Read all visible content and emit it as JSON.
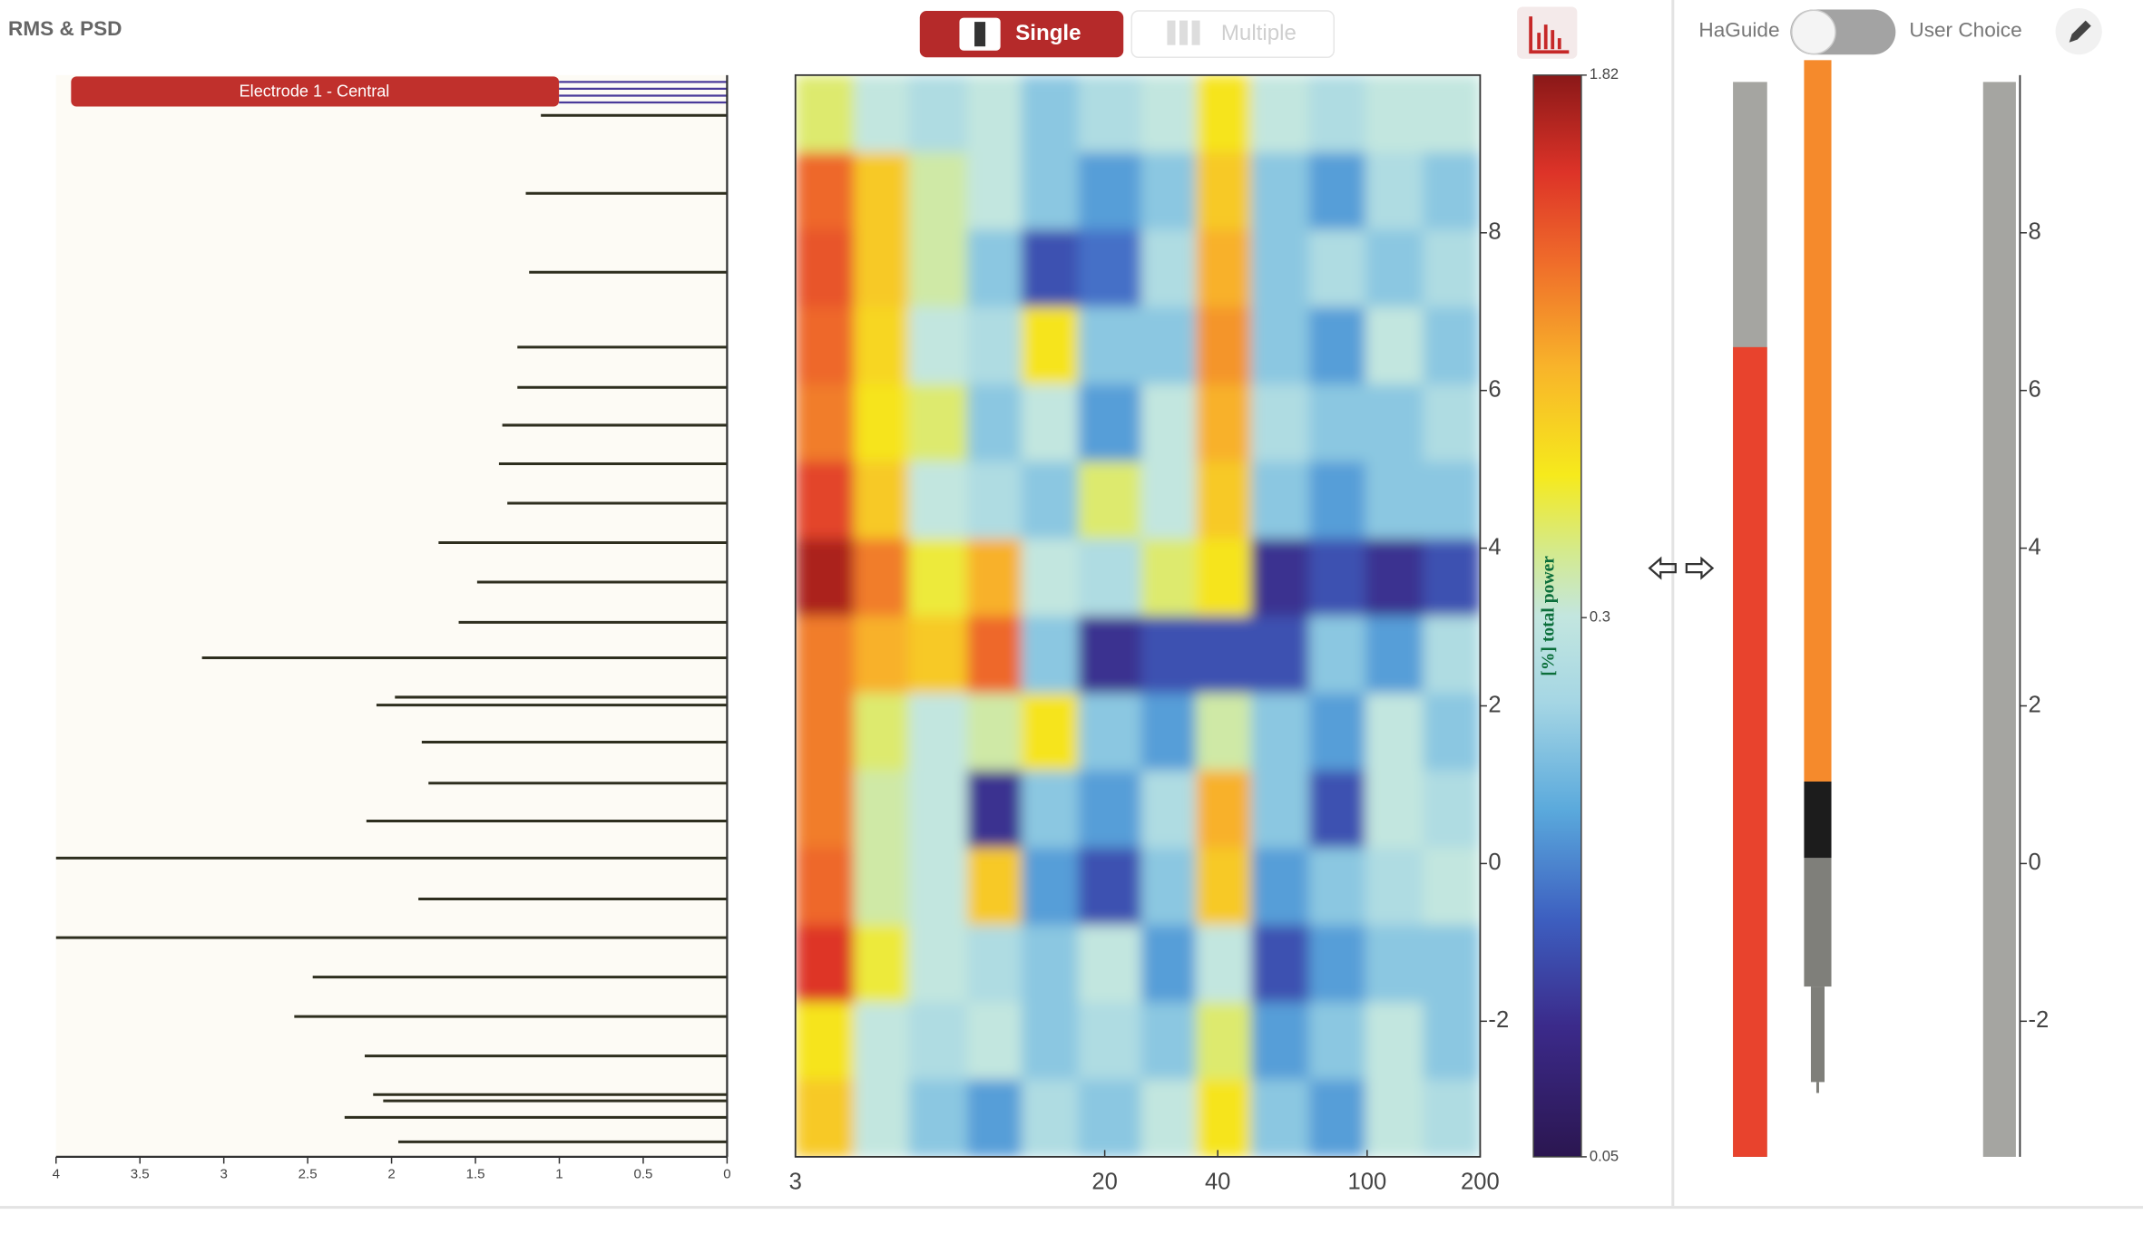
{
  "header": {
    "title": "RMS & PSD",
    "single": "Single",
    "multiple": "Multiple"
  },
  "toggle": {
    "left": "HaGuide",
    "right": "User Choice"
  },
  "chart_data": [
    {
      "type": "hbar",
      "label": "Electrode 1 - Central",
      "color": "#2e2e1e",
      "y": [
        9.49,
        8.5,
        7.5,
        6.55,
        6.04,
        5.56,
        5.07,
        4.57,
        4.07,
        3.57,
        3.06,
        2.61,
        2.11,
        2.01,
        1.54,
        1.02,
        0.54,
        0.07,
        -0.45,
        -0.94,
        -1.44,
        -1.94,
        -2.44,
        -2.93,
        -3.01,
        -3.22,
        -3.53
      ],
      "values": [
        1.11,
        1.2,
        1.18,
        1.25,
        1.25,
        1.34,
        1.36,
        1.31,
        1.72,
        1.49,
        1.6,
        3.13,
        1.98,
        2.09,
        1.82,
        1.78,
        2.15,
        4.0,
        1.84,
        4.0,
        2.47,
        2.58,
        2.16,
        2.11,
        2.05,
        2.28,
        1.96
      ],
      "xlim": [
        4,
        0
      ],
      "xticks": [
        4,
        3.5,
        3,
        2.5,
        2,
        1.5,
        1,
        0.5,
        0
      ],
      "ylim": [
        -3.72,
        10
      ]
    },
    {
      "type": "heatmap",
      "xscale": "log",
      "xlim": [
        3,
        200
      ],
      "xticks": [
        3,
        20,
        40,
        100,
        200
      ],
      "ylim": [
        -3.72,
        10
      ],
      "yticks": [
        8,
        6,
        4,
        2,
        0,
        -2
      ],
      "x_edges": [
        3,
        4.3,
        6,
        8.6,
        12,
        17,
        25,
        35,
        49,
        70,
        99,
        141,
        200
      ],
      "y_edges": [
        10,
        9.02,
        8.04,
        7.06,
        6.08,
        5.1,
        4.12,
        3.14,
        2.16,
        1.18,
        0.2,
        -0.78,
        -1.76,
        -2.74,
        -3.72
      ],
      "z": [
        [
          0.4,
          0.3,
          0.25,
          0.3,
          0.2,
          0.25,
          0.3,
          0.5,
          0.3,
          0.25,
          0.3,
          0.3
        ],
        [
          1.0,
          0.6,
          0.35,
          0.3,
          0.2,
          0.15,
          0.2,
          0.6,
          0.2,
          0.15,
          0.25,
          0.2
        ],
        [
          1.1,
          0.6,
          0.35,
          0.2,
          0.1,
          0.12,
          0.25,
          0.7,
          0.2,
          0.25,
          0.2,
          0.25
        ],
        [
          1.0,
          0.55,
          0.3,
          0.25,
          0.5,
          0.2,
          0.2,
          0.8,
          0.2,
          0.15,
          0.3,
          0.2
        ],
        [
          0.9,
          0.5,
          0.4,
          0.2,
          0.3,
          0.15,
          0.3,
          0.7,
          0.25,
          0.2,
          0.2,
          0.25
        ],
        [
          1.2,
          0.6,
          0.3,
          0.25,
          0.2,
          0.4,
          0.3,
          0.6,
          0.2,
          0.15,
          0.2,
          0.2
        ],
        [
          1.6,
          0.9,
          0.45,
          0.7,
          0.3,
          0.25,
          0.4,
          0.5,
          0.08,
          0.1,
          0.08,
          0.1
        ],
        [
          0.9,
          0.7,
          0.6,
          1.0,
          0.2,
          0.08,
          0.1,
          0.1,
          0.1,
          0.2,
          0.15,
          0.25
        ],
        [
          0.9,
          0.4,
          0.3,
          0.35,
          0.5,
          0.2,
          0.15,
          0.35,
          0.2,
          0.15,
          0.3,
          0.2
        ],
        [
          0.9,
          0.35,
          0.3,
          0.08,
          0.2,
          0.15,
          0.25,
          0.7,
          0.2,
          0.1,
          0.3,
          0.25
        ],
        [
          1.0,
          0.35,
          0.3,
          0.6,
          0.15,
          0.1,
          0.2,
          0.6,
          0.15,
          0.2,
          0.25,
          0.3
        ],
        [
          1.3,
          0.45,
          0.3,
          0.25,
          0.2,
          0.3,
          0.15,
          0.3,
          0.1,
          0.15,
          0.2,
          0.2
        ],
        [
          0.5,
          0.3,
          0.25,
          0.3,
          0.2,
          0.25,
          0.2,
          0.4,
          0.15,
          0.2,
          0.3,
          0.2
        ],
        [
          0.6,
          0.3,
          0.2,
          0.15,
          0.25,
          0.2,
          0.3,
          0.5,
          0.2,
          0.15,
          0.3,
          0.25
        ]
      ],
      "colorbar": {
        "label": "[%] total power",
        "scale": "log",
        "lim": [
          0.05,
          1.82
        ],
        "ticks": [
          1.82,
          0.3,
          0.05
        ]
      }
    },
    {
      "type": "trajectory",
      "ylim": [
        -3.72,
        10
      ],
      "yticks": [
        8,
        6,
        4,
        2,
        0,
        -2
      ],
      "bar_value": 6.55,
      "bar_color": "#e8432d",
      "segments": [
        {
          "from": 1.04,
          "to": 10.19,
          "color": "#f58a2c"
        },
        {
          "from": 0.07,
          "to": 1.04,
          "color": "#1c1c1c"
        },
        {
          "from": -1.56,
          "to": 0.07,
          "color": "#7f7f7a"
        }
      ],
      "tip": -2.91
    }
  ]
}
